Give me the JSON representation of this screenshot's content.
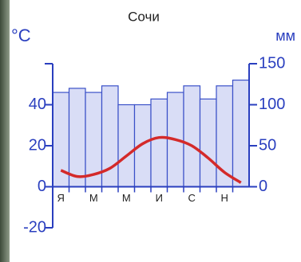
{
  "chart_data": {
    "type": "climate",
    "title": "Сочи",
    "y_label": "°C",
    "y2_label": "мм",
    "categories": [
      "Я",
      null,
      "М",
      null,
      "М",
      null,
      "И",
      null,
      "С",
      null,
      "Н",
      null
    ],
    "series": [
      {
        "type": "bar",
        "axis": "y2",
        "color": "#d9ddf6",
        "values": [
          115,
          120,
          115,
          123,
          100,
          100,
          107,
          115,
          123,
          107,
          123,
          130
        ]
      },
      {
        "type": "line",
        "color": "#d42a2a",
        "values": [
          8,
          5,
          6,
          9,
          15,
          21,
          24,
          23,
          20,
          14,
          7,
          2
        ]
      }
    ],
    "ylim": [
      -20,
      60
    ],
    "yticks": [
      -20,
      0,
      20,
      40
    ],
    "y2lim": [
      -50,
      150
    ],
    "y2ticks": [
      0,
      50,
      100,
      150
    ]
  }
}
